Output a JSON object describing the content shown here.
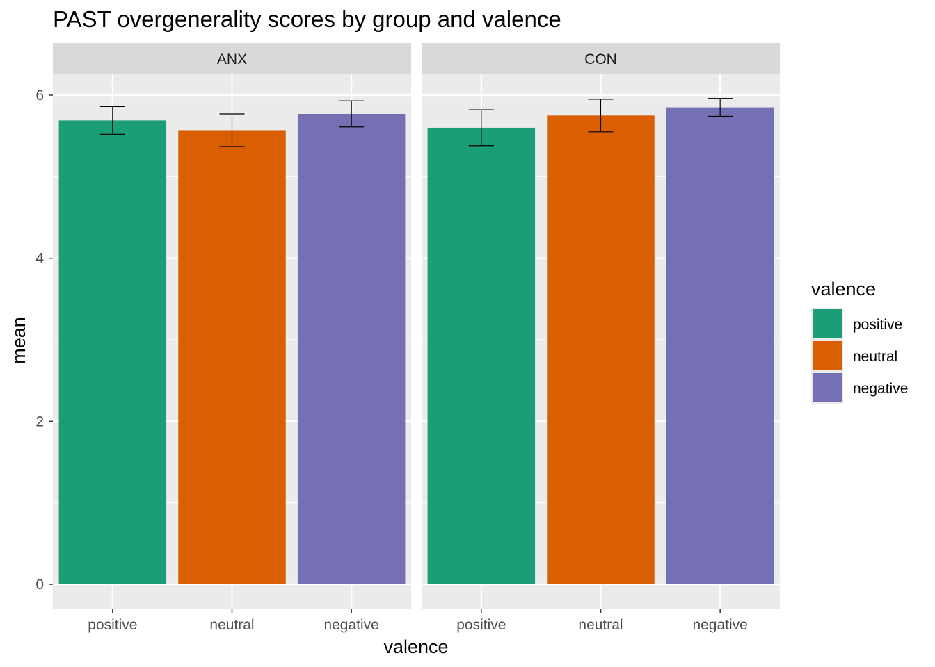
{
  "chart_data": {
    "type": "bar",
    "title": "PAST overgenerality scores by group and valence",
    "xlabel": "valence",
    "ylabel": "mean",
    "ylim": [
      -0.3,
      6.6
    ],
    "yticks": [
      0,
      2,
      4,
      6
    ],
    "grid": true,
    "legend_position": "right",
    "legend_title": "valence",
    "categories": [
      "positive",
      "neutral",
      "negative"
    ],
    "colors": [
      "#1B9E77",
      "#D95F02",
      "#7570B3"
    ],
    "panels": [
      {
        "name": "ANX",
        "values": [
          5.69,
          5.57,
          5.77
        ],
        "error_low": [
          5.52,
          5.37,
          5.61
        ],
        "error_high": [
          5.86,
          5.77,
          5.93
        ]
      },
      {
        "name": "CON",
        "values": [
          5.6,
          5.75,
          5.85
        ],
        "error_low": [
          5.38,
          5.55,
          5.74
        ],
        "error_high": [
          5.82,
          5.95,
          5.96
        ]
      }
    ]
  }
}
